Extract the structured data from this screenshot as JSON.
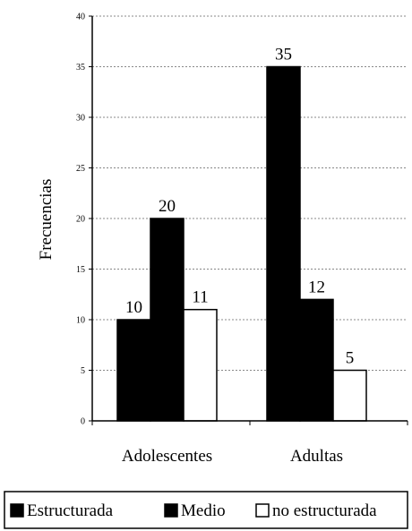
{
  "chart_data": {
    "type": "bar",
    "title": "",
    "xlabel": "",
    "ylabel": "Frecuencias",
    "ylim": [
      0,
      40
    ],
    "yticks": [
      0,
      5,
      10,
      15,
      20,
      25,
      30,
      35,
      40
    ],
    "grid": true,
    "legend_position": "bottom",
    "categories": [
      "Adolescentes",
      "Adultas"
    ],
    "series": [
      {
        "name": "Estructurada",
        "values": [
          10,
          35
        ],
        "color": "#000000"
      },
      {
        "name": "Medio",
        "values": [
          20,
          12
        ],
        "color": "#000000"
      },
      {
        "name": "no estructurada",
        "values": [
          11,
          5
        ],
        "color": "#ffffff"
      }
    ]
  }
}
